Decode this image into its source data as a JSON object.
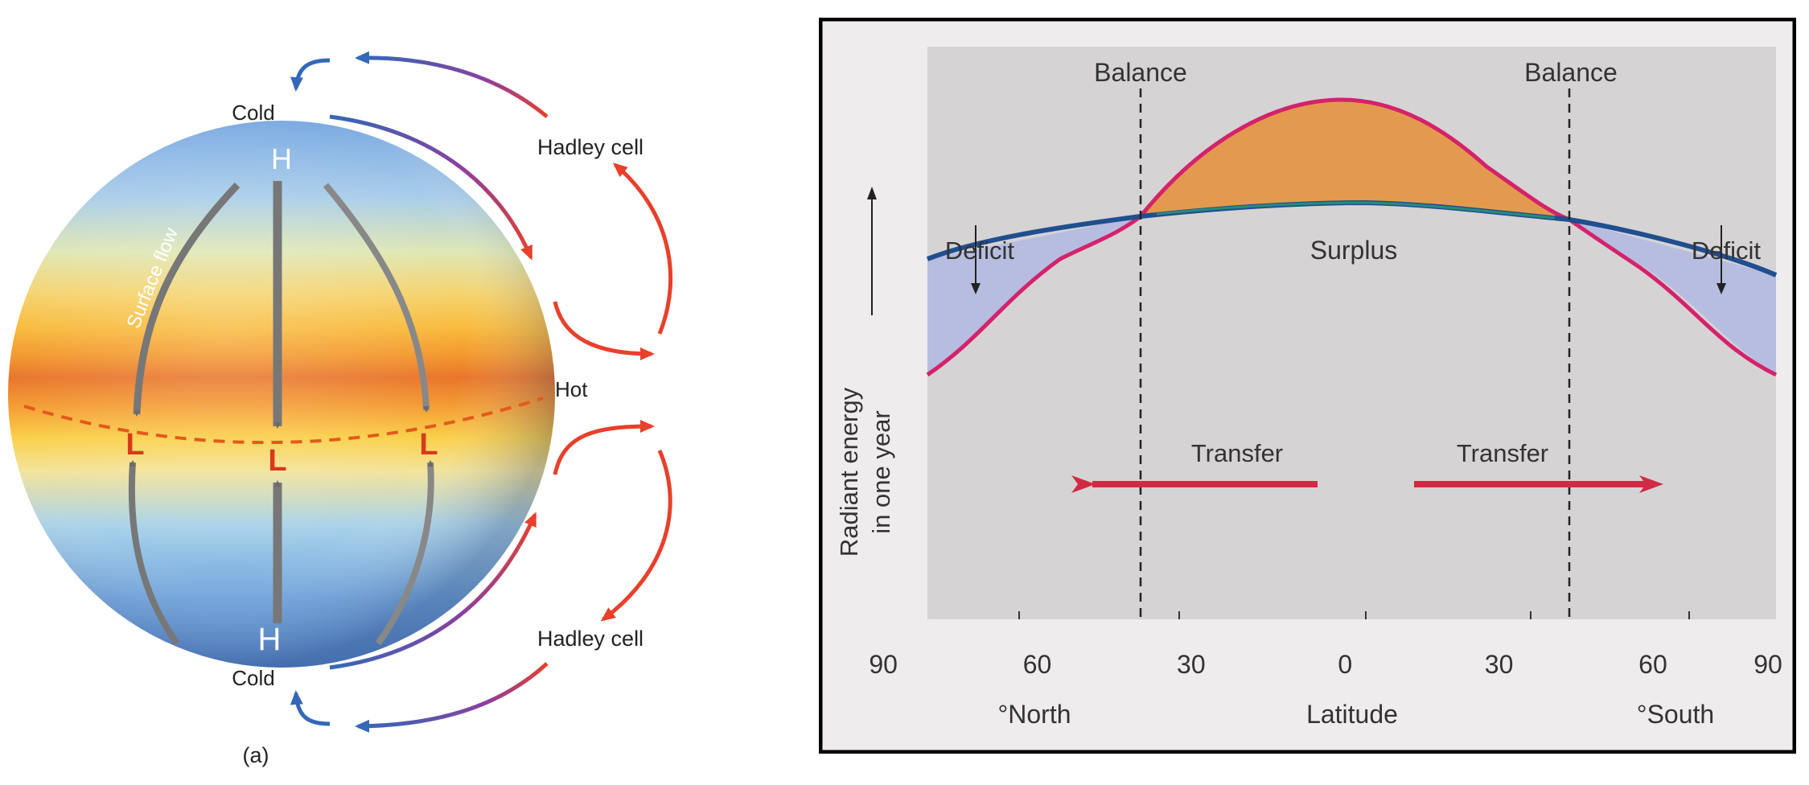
{
  "globe": {
    "pole_north_label": "H",
    "pole_south_label": "H",
    "low_labels": [
      "L",
      "L",
      "L"
    ],
    "cold_top": "Cold",
    "cold_bottom": "Cold",
    "hot_label": "Hot",
    "hadley_top": "Hadley cell",
    "hadley_bottom": "Hadley cell",
    "surface_flow": "Surface flow",
    "caption": "(a)",
    "colors": {
      "pole_blue": "#5a8fd0",
      "equator_orange": "#f08a2a",
      "equator_red": "#e35a1c",
      "hadley_red": "#e8402a",
      "return_blue": "#3468b8",
      "low_red": "#d83a1a"
    }
  },
  "chart": {
    "balance_left": "Balance",
    "balance_right": "Balance",
    "deficit_left": "Deficit",
    "deficit_right": "Deficit",
    "surplus": "Surplus",
    "transfer_left": "Transfer",
    "transfer_right": "Transfer",
    "ylabel_line1": "Radiant energy",
    "ylabel_line2": "in one year",
    "xlabel": "Latitude",
    "north_label": "°North",
    "south_label": "°South",
    "colors": {
      "plot_bg": "#d6d3d4",
      "surplus_fill": "#e39a4e",
      "deficit_fill": "#b7bde0",
      "incoming_curve": "#d4226b",
      "outgoing_curve": "#1f4f8f",
      "transfer_arrow": "#d12a44"
    }
  },
  "chart_data": {
    "type": "line",
    "title": "",
    "xlabel": "Latitude",
    "ylabel": "Radiant energy in one year",
    "x_ticks": [
      "90",
      "60",
      "30",
      "0",
      "30",
      "60",
      "90"
    ],
    "x_tick_values": [
      -90,
      -60,
      -30,
      0,
      30,
      60,
      90
    ],
    "balance_latitudes": [
      -38,
      38
    ],
    "series": []
  }
}
